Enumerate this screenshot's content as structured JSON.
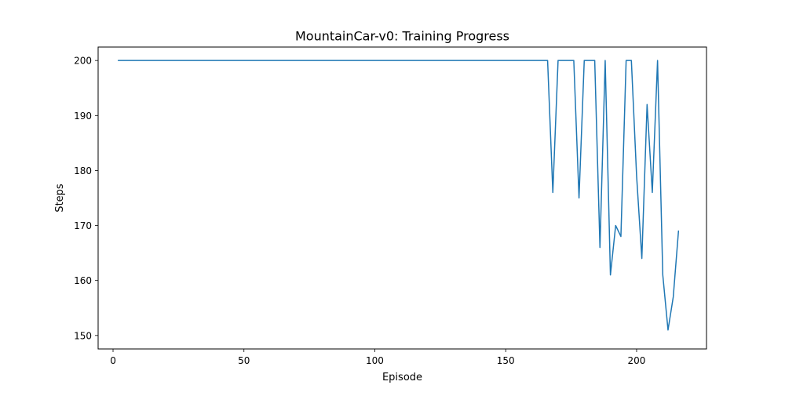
{
  "chart_data": {
    "type": "line",
    "title": "MountainCar-v0: Training Progress",
    "xlabel": "Episode",
    "ylabel": "Steps",
    "xlim": [
      -5.7,
      226.7
    ],
    "ylim": [
      147.55,
      202.45
    ],
    "xticks": [
      0,
      50,
      100,
      150,
      200
    ],
    "yticks": [
      150,
      160,
      170,
      180,
      190,
      200
    ],
    "grid": false,
    "line_color": "#1f77b4",
    "series": [
      {
        "x": [
          2,
          4,
          6,
          8,
          10,
          12,
          14,
          16,
          18,
          20,
          22,
          24,
          26,
          28,
          30,
          32,
          34,
          36,
          38,
          40,
          42,
          44,
          46,
          48,
          50,
          52,
          54,
          56,
          58,
          60,
          62,
          64,
          66,
          68,
          70,
          72,
          74,
          76,
          78,
          80,
          82,
          84,
          86,
          88,
          90,
          92,
          94,
          96,
          98,
          100,
          102,
          104,
          106,
          108,
          110,
          112,
          114,
          116,
          118,
          120,
          122,
          124,
          126,
          128,
          130,
          132,
          134,
          136,
          138,
          140,
          142,
          144,
          146,
          148,
          150,
          152,
          154,
          156,
          158,
          160,
          162,
          164,
          166,
          168,
          170,
          172,
          174,
          176,
          178,
          180,
          182,
          184,
          186,
          188,
          190,
          192,
          194,
          196,
          198,
          200,
          202,
          204,
          206,
          208,
          210,
          212,
          214,
          216
        ],
        "values": [
          200,
          200,
          200,
          200,
          200,
          200,
          200,
          200,
          200,
          200,
          200,
          200,
          200,
          200,
          200,
          200,
          200,
          200,
          200,
          200,
          200,
          200,
          200,
          200,
          200,
          200,
          200,
          200,
          200,
          200,
          200,
          200,
          200,
          200,
          200,
          200,
          200,
          200,
          200,
          200,
          200,
          200,
          200,
          200,
          200,
          200,
          200,
          200,
          200,
          200,
          200,
          200,
          200,
          200,
          200,
          200,
          200,
          200,
          200,
          200,
          200,
          200,
          200,
          200,
          200,
          200,
          200,
          200,
          200,
          200,
          200,
          200,
          200,
          200,
          200,
          200,
          200,
          200,
          200,
          200,
          200,
          200,
          200,
          176,
          200,
          200,
          200,
          200,
          175,
          200,
          200,
          200,
          166,
          200,
          161,
          170,
          168,
          200,
          200,
          179,
          164,
          192,
          176,
          200,
          161,
          151,
          157,
          169
        ]
      }
    ]
  }
}
